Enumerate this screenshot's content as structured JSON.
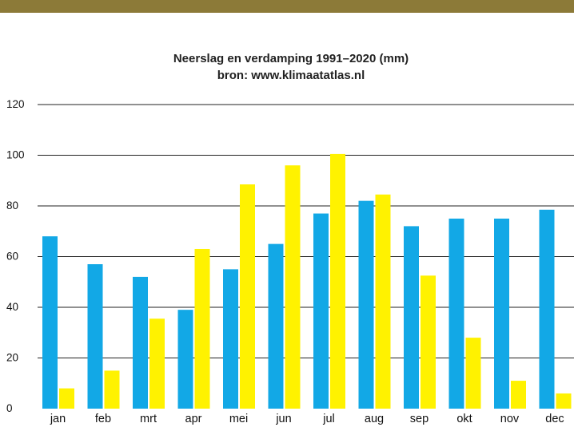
{
  "colors": {
    "top_bar": "#8c7a38",
    "precipitation": "#12a8e6",
    "evaporation": "#fff200",
    "grid": "#222222"
  },
  "chart_data": {
    "type": "bar",
    "title": "Neerslag en verdamping 1991–2020 (mm)",
    "subtitle": "bron: www.klimaatatlas.nl",
    "xlabel": "",
    "ylabel": "",
    "ylim": [
      0,
      120
    ],
    "yticks": [
      "0",
      "20",
      "40",
      "60",
      "80",
      "100",
      "120"
    ],
    "grid": true,
    "categories": [
      "jan",
      "feb",
      "mrt",
      "apr",
      "mei",
      "jun",
      "jul",
      "aug",
      "sep",
      "okt",
      "nov",
      "dec"
    ],
    "series": [
      {
        "values": [
          68,
          57,
          52,
          39,
          55,
          65,
          77,
          82,
          72,
          75,
          75,
          78.5
        ]
      },
      {
        "values": [
          8,
          15,
          35.5,
          63,
          88.5,
          96,
          100.5,
          84.5,
          52.5,
          28,
          11,
          6
        ]
      }
    ]
  }
}
